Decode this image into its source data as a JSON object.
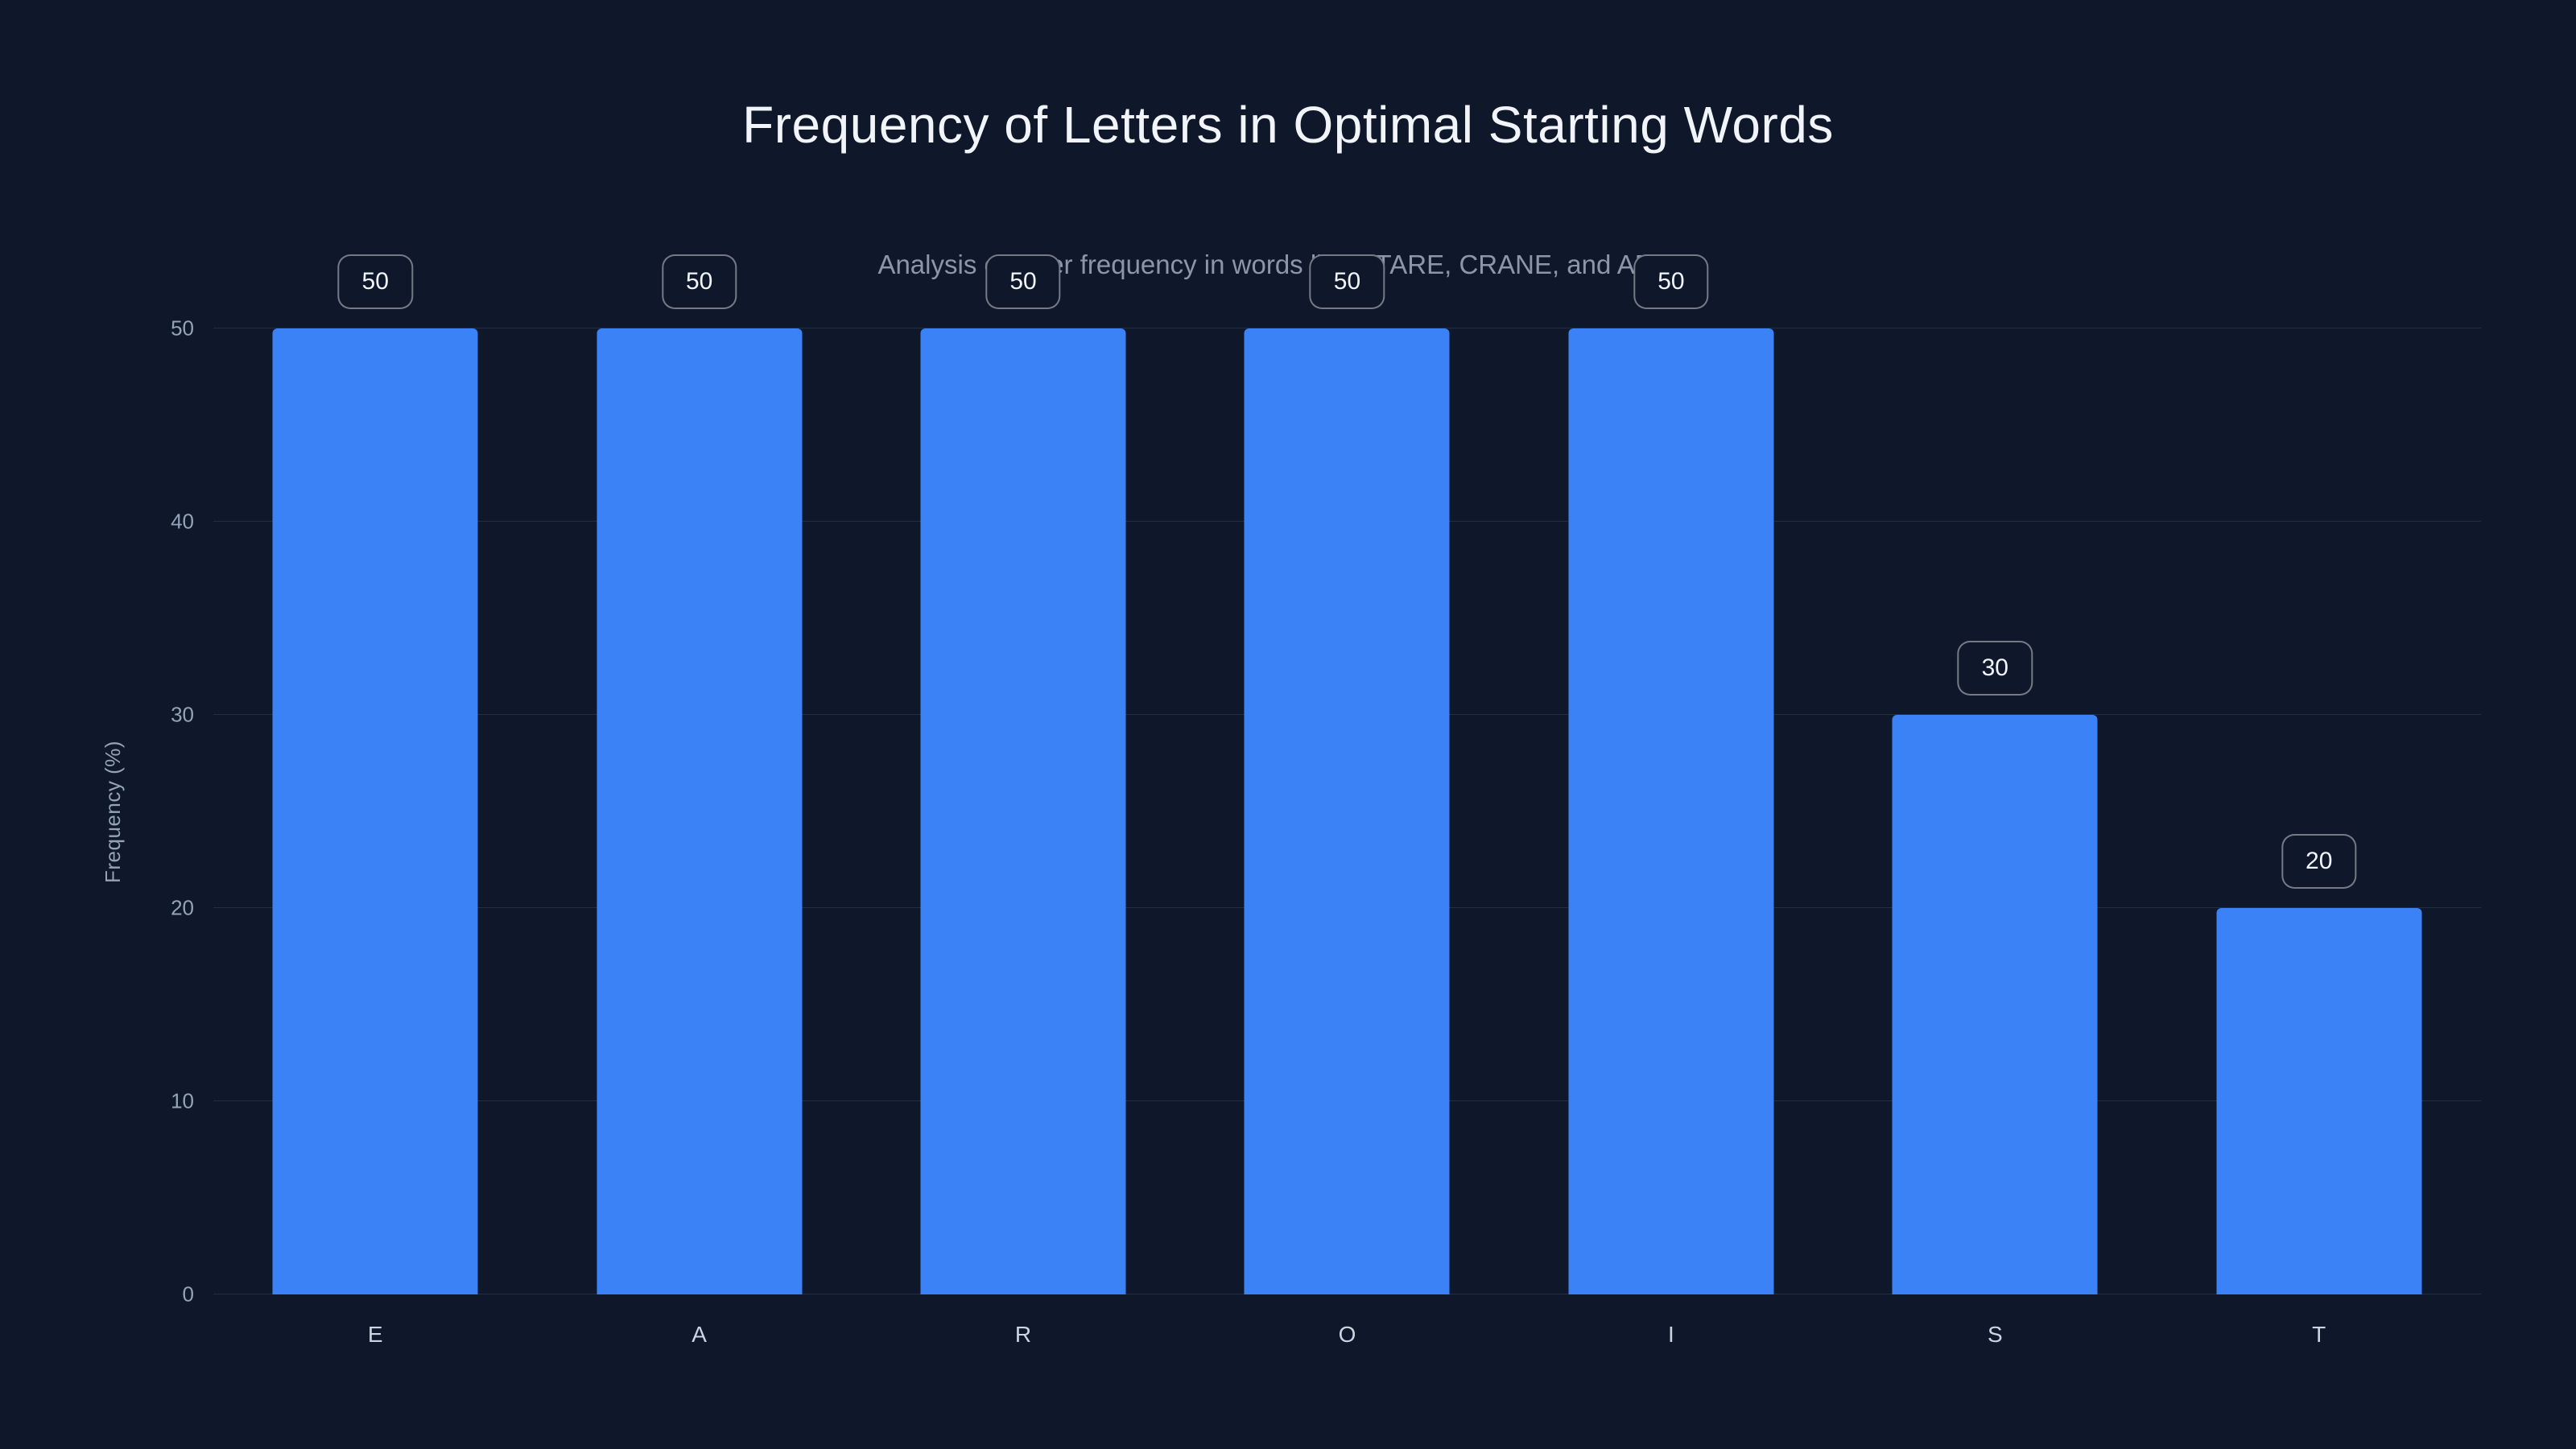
{
  "chart_data": {
    "type": "bar",
    "title": "Frequency of Letters in Optimal Starting Words",
    "subtitle": "Analysis of letter frequency in words like STARE, CRANE, and ADIEU",
    "xlabel": "",
    "ylabel": "Frequency (%)",
    "categories": [
      "E",
      "A",
      "R",
      "O",
      "I",
      "S",
      "T"
    ],
    "values": [
      50,
      50,
      50,
      50,
      50,
      30,
      20
    ],
    "data_labels": [
      "50",
      "50",
      "50",
      "50",
      "50",
      "30",
      "20"
    ],
    "ylim": [
      0,
      50
    ],
    "yticks": [
      0,
      10,
      20,
      30,
      40,
      50
    ],
    "grid": true,
    "legend": false,
    "colors": {
      "background": "#0f172a",
      "bar": "#3b82f6",
      "title_text": "#f1f5f9",
      "subtitle_text": "#8b97a8",
      "axis_text": "#94a3b8",
      "x_tick_text": "#cbd5e1",
      "gridline": "rgba(148,163,184,0.16)",
      "pill_background": "#0f172a",
      "pill_border": "rgba(241,245,249,0.45)",
      "pill_text": "#f1f5f9"
    }
  }
}
